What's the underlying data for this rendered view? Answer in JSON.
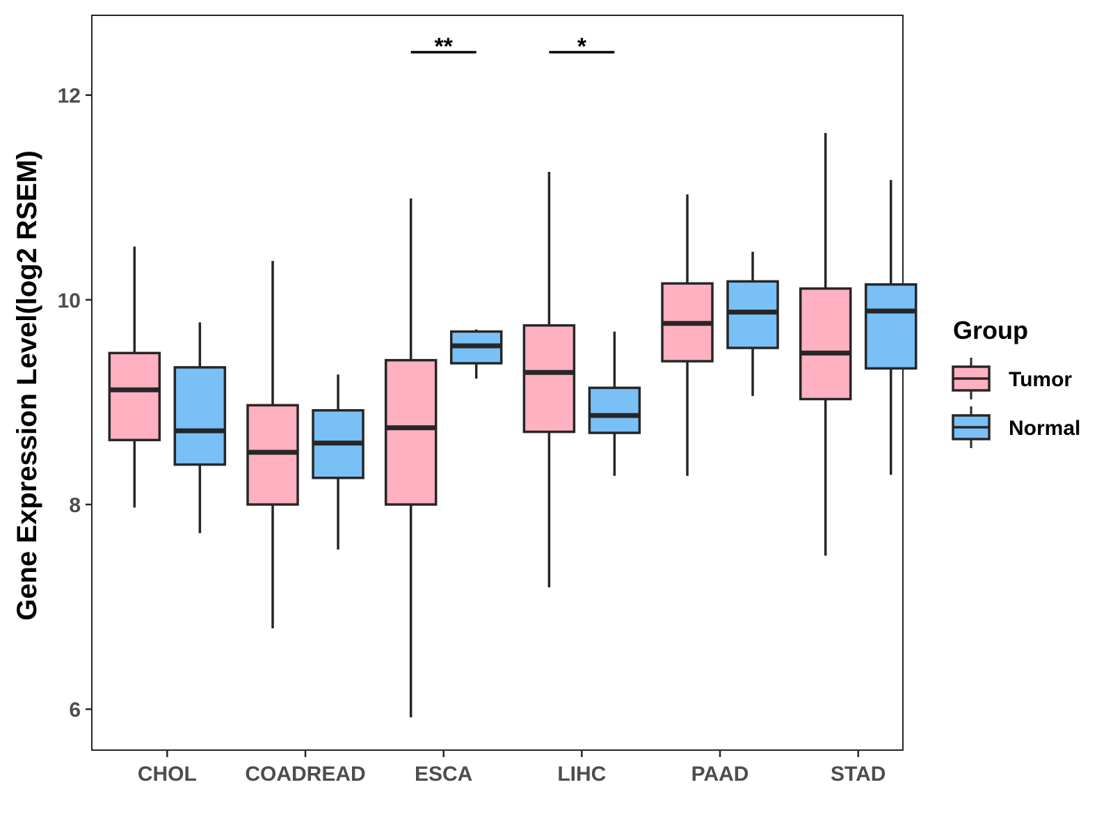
{
  "chart_data": {
    "type": "boxplot",
    "title": "",
    "xlabel": "",
    "ylabel": "Gene Expression Level(log2 RSEM)",
    "ylim": [
      5.6,
      12.78
    ],
    "yticks": [
      6,
      8,
      10,
      12
    ],
    "categories": [
      "CHOL",
      "COADREAD",
      "ESCA",
      "LIHC",
      "PAAD",
      "STAD"
    ],
    "legend": {
      "title": "Group",
      "position": "right",
      "items": [
        {
          "name": "Tumor",
          "color": "#FFB0C1"
        },
        {
          "name": "Normal",
          "color": "#79C0F7"
        }
      ]
    },
    "series": [
      {
        "name": "Tumor",
        "color": "#FFB0C1",
        "boxes": [
          {
            "category": "CHOL",
            "low": 7.97,
            "q1": 8.63,
            "median": 9.12,
            "q3": 9.48,
            "high": 10.52
          },
          {
            "category": "COADREAD",
            "low": 6.79,
            "q1": 8.0,
            "median": 8.51,
            "q3": 8.97,
            "high": 10.38
          },
          {
            "category": "ESCA",
            "low": 5.92,
            "q1": 8.0,
            "median": 8.75,
            "q3": 9.41,
            "high": 10.99
          },
          {
            "category": "LIHC",
            "low": 7.19,
            "q1": 8.71,
            "median": 9.29,
            "q3": 9.75,
            "high": 11.25
          },
          {
            "category": "PAAD",
            "low": 8.28,
            "q1": 9.4,
            "median": 9.77,
            "q3": 10.16,
            "high": 11.03
          },
          {
            "category": "STAD",
            "low": 7.5,
            "q1": 9.03,
            "median": 9.48,
            "q3": 10.11,
            "high": 11.63
          }
        ]
      },
      {
        "name": "Normal",
        "color": "#79C0F7",
        "boxes": [
          {
            "category": "CHOL",
            "low": 7.72,
            "q1": 8.39,
            "median": 8.72,
            "q3": 9.34,
            "high": 9.78
          },
          {
            "category": "COADREAD",
            "low": 7.56,
            "q1": 8.26,
            "median": 8.6,
            "q3": 8.92,
            "high": 9.27
          },
          {
            "category": "ESCA",
            "low": 9.23,
            "q1": 9.38,
            "median": 9.55,
            "q3": 9.69,
            "high": 9.71
          },
          {
            "category": "LIHC",
            "low": 8.28,
            "q1": 8.7,
            "median": 8.87,
            "q3": 9.14,
            "high": 9.69
          },
          {
            "category": "PAAD",
            "low": 9.06,
            "q1": 9.53,
            "median": 9.88,
            "q3": 10.18,
            "high": 10.47
          },
          {
            "category": "STAD",
            "low": 8.29,
            "q1": 9.33,
            "median": 9.89,
            "q3": 10.15,
            "high": 11.17
          }
        ]
      }
    ],
    "annotations": [
      {
        "category": "ESCA",
        "label": "**",
        "y": 12.42
      },
      {
        "category": "LIHC",
        "label": "*",
        "y": 12.42
      }
    ]
  }
}
